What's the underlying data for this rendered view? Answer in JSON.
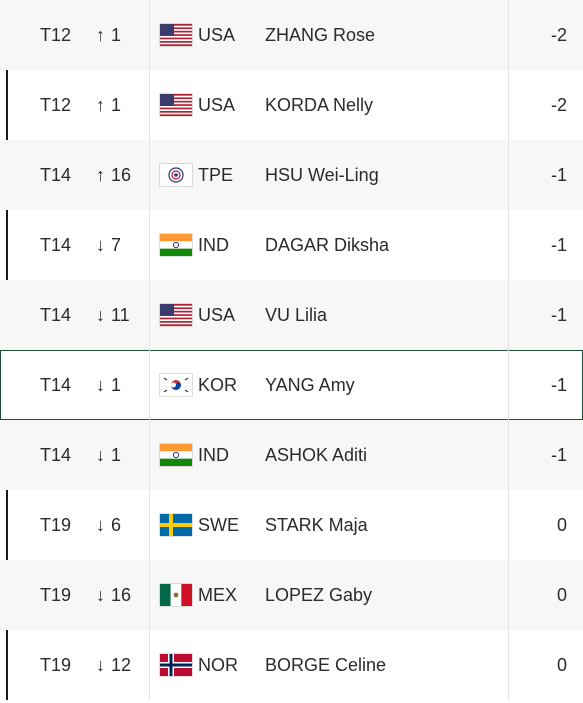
{
  "rows": [
    {
      "pos": "T12",
      "dir": "up",
      "arrow": "↑",
      "move": "1",
      "country": "USA",
      "flag": "usa-flag",
      "name": "ZHANG Rose",
      "score": "-2"
    },
    {
      "pos": "T12",
      "dir": "up",
      "arrow": "↑",
      "move": "1",
      "country": "USA",
      "flag": "usa-flag",
      "name": "KORDA Nelly",
      "score": "-2"
    },
    {
      "pos": "T14",
      "dir": "up",
      "arrow": "↑",
      "move": "16",
      "country": "TPE",
      "flag": "tpe-flag",
      "name": "HSU Wei-Ling",
      "score": "-1"
    },
    {
      "pos": "T14",
      "dir": "down",
      "arrow": "↓",
      "move": "7",
      "country": "IND",
      "flag": "ind-flag",
      "name": "DAGAR Diksha",
      "score": "-1"
    },
    {
      "pos": "T14",
      "dir": "down",
      "arrow": "↓",
      "move": "11",
      "country": "USA",
      "flag": "usa-flag",
      "name": "VU Lilia",
      "score": "-1"
    },
    {
      "pos": "T14",
      "dir": "down",
      "arrow": "↓",
      "move": "1",
      "country": "KOR",
      "flag": "kor-flag",
      "name": "YANG Amy",
      "score": "-1"
    },
    {
      "pos": "T14",
      "dir": "down",
      "arrow": "↓",
      "move": "1",
      "country": "IND",
      "flag": "ind-flag",
      "name": "ASHOK Aditi",
      "score": "-1"
    },
    {
      "pos": "T19",
      "dir": "down",
      "arrow": "↓",
      "move": "6",
      "country": "SWE",
      "flag": "swe-flag",
      "name": "STARK Maja",
      "score": "0"
    },
    {
      "pos": "T19",
      "dir": "down",
      "arrow": "↓",
      "move": "16",
      "country": "MEX",
      "flag": "mex-flag",
      "name": "LOPEZ Gaby",
      "score": "0"
    },
    {
      "pos": "T19",
      "dir": "down",
      "arrow": "↓",
      "move": "12",
      "country": "NOR",
      "flag": "nor-flag",
      "name": "BORGE Celine",
      "score": "0"
    }
  ],
  "colors": {
    "selected_outline": "#1f4d35",
    "row_alt": "#f7f7f7",
    "text": "#2b2b2b"
  }
}
